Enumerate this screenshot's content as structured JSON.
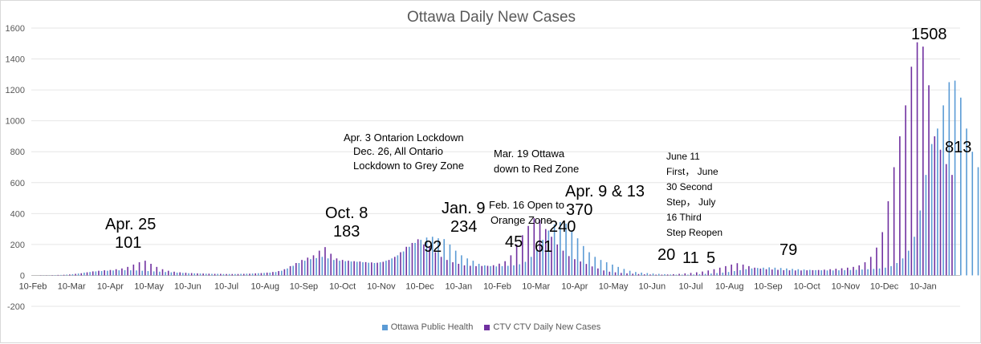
{
  "chart_data": {
    "type": "bar",
    "title": "Ottawa Daily New Cases",
    "ylim": [
      -200,
      1600
    ],
    "yticks": [
      -200,
      0,
      200,
      400,
      600,
      800,
      1000,
      1200,
      1400,
      1600
    ],
    "x_tick_labels": [
      "10-Feb",
      "10-Mar",
      "10-Apr",
      "10-May",
      "10-Jun",
      "10-Jul",
      "10-Aug",
      "10-Sep",
      "10-Oct",
      "10-Nov",
      "10-Dec",
      "10-Jan",
      "10-Feb",
      "10-Mar",
      "10-Apr",
      "10-May",
      "10-Jun",
      "10-Jul",
      "10-Aug",
      "10-Sep",
      "10-Oct",
      "10-Nov",
      "10-Dec",
      "10-Jan"
    ],
    "gridlines": true,
    "legend_position": "bottom",
    "series": [
      {
        "name": "Ottawa Public Health",
        "color": "#5b9bd5",
        "values": [
          0,
          0,
          1,
          1,
          2,
          3,
          5,
          8,
          12,
          18,
          22,
          26,
          28,
          30,
          32,
          33,
          34,
          33,
          32,
          30,
          28,
          26,
          24,
          22,
          20,
          18,
          16,
          14,
          13,
          12,
          11,
          10,
          10,
          9,
          9,
          9,
          10,
          11,
          12,
          14,
          16,
          18,
          22,
          30,
          45,
          62,
          80,
          95,
          105,
          112,
          120,
          110,
          100,
          95,
          92,
          90,
          88,
          85,
          82,
          80,
          85,
          95,
          110,
          130,
          155,
          185,
          210,
          230,
          245,
          250,
          240,
          235,
          200,
          160,
          130,
          110,
          95,
          75,
          65,
          60,
          58,
          60,
          62,
          65,
          72,
          88,
          120,
          170,
          230,
          290,
          330,
          345,
          335,
          290,
          240,
          190,
          150,
          120,
          100,
          85,
          70,
          55,
          42,
          30,
          22,
          18,
          15,
          12,
          10,
          8,
          6,
          5,
          5,
          5,
          6,
          8,
          10,
          12,
          15,
          18,
          22,
          28,
          34,
          40,
          45,
          48,
          50,
          52,
          50,
          48,
          45,
          42,
          40,
          38,
          36,
          34,
          33,
          32,
          32,
          33,
          34,
          35,
          36,
          38,
          40,
          42,
          45,
          50,
          60,
          80,
          110,
          160,
          250,
          420,
          650,
          850,
          950,
          1100,
          1250,
          1260,
          1150,
          950,
          800,
          700,
          600
        ],
        "x_start": 0,
        "x_step": 2.5
      },
      {
        "name": "CTV CTV Daily New Cases",
        "color": "#7030a0",
        "values": [
          0,
          1,
          1,
          2,
          3,
          4,
          6,
          10,
          14,
          20,
          26,
          30,
          33,
          35,
          40,
          45,
          55,
          70,
          85,
          95,
          75,
          55,
          40,
          30,
          24,
          20,
          17,
          15,
          13,
          12,
          11,
          10,
          10,
          9,
          9,
          9,
          10,
          11,
          13,
          15,
          18,
          22,
          28,
          40,
          60,
          80,
          100,
          115,
          130,
          160,
          183,
          140,
          110,
          100,
          95,
          92,
          90,
          86,
          84,
          82,
          88,
          100,
          120,
          150,
          185,
          210,
          234,
          200,
          190,
          150,
          120,
          100,
          85,
          75,
          65,
          62,
          60,
          61,
          62,
          66,
          76,
          92,
          130,
          200,
          260,
          320,
          370,
          360,
          300,
          250,
          200,
          160,
          125,
          105,
          90,
          74,
          58,
          45,
          32,
          24,
          20,
          16,
          13,
          11,
          9,
          7,
          6,
          5,
          5,
          6,
          8,
          10,
          13,
          16,
          20,
          25,
          32,
          40,
          50,
          60,
          70,
          79,
          70,
          60,
          50,
          44,
          40,
          38,
          36,
          34,
          33,
          32,
          32,
          33,
          34,
          35,
          37,
          40,
          43,
          46,
          50,
          55,
          65,
          85,
          120,
          180,
          280,
          480,
          700,
          900,
          1100,
          1350,
          1508,
          1480,
          1230,
          900,
          813,
          720,
          650
        ],
        "x_start": 1.25,
        "x_step": 2.5
      }
    ],
    "annotations": [
      {
        "text": "Apr. 25",
        "color": "#ff0000"
      },
      {
        "text": "101",
        "color": "#ff0000"
      },
      {
        "text": "Oct. 8",
        "color": "#ff0000"
      },
      {
        "text": "183",
        "color": "#ff0000"
      },
      {
        "text": "Apr. 3 Ontarion Lockdown",
        "color": "#595959"
      },
      {
        "text": "Dec. 26, All Ontario",
        "color": "#000000"
      },
      {
        "text": "Lockdown to Grey Zone",
        "color": "#000000"
      },
      {
        "text": "92",
        "color": "#262626"
      },
      {
        "text": "Jan. 9",
        "color": "#ff0000"
      },
      {
        "text": "234",
        "color": "#ff0000"
      },
      {
        "text": "Feb. 16 Open to",
        "color": "#ed7d31"
      },
      {
        "text": "Orange Zone",
        "color": "#ed7d31"
      },
      {
        "text": "45",
        "color": "#ed7d31"
      },
      {
        "text": "Mar. 19 Ottawa",
        "color": "#ff0000"
      },
      {
        "text": "down to Red Zone",
        "color": "#ff0000"
      },
      {
        "text": "61",
        "color": "#ff0000"
      },
      {
        "text": "240",
        "color": "#7f7f7f"
      },
      {
        "text": "Apr. 9 & 13",
        "color": "#ff0000"
      },
      {
        "text": "370",
        "color": "#ff0000"
      },
      {
        "text": "June 11",
        "color": "#ffc000"
      },
      {
        "text": "First， June",
        "color": "#ffc000"
      },
      {
        "text": "30 Second",
        "color": "#ffc000"
      },
      {
        "text": "Step， July",
        "color": "#ffc000"
      },
      {
        "text": "16 Third",
        "color": "#ffc000"
      },
      {
        "text": "Step Reopen",
        "color": "#ffc000"
      },
      {
        "text": "20",
        "color": "#ffc000"
      },
      {
        "text": "11",
        "color": "#ffc000"
      },
      {
        "text": "5",
        "color": "#ffc000"
      },
      {
        "text": "79",
        "color": "#ff0000"
      },
      {
        "text": "1508",
        "color": "#ff0000"
      },
      {
        "text": "813",
        "color": "#7030a0"
      }
    ]
  }
}
